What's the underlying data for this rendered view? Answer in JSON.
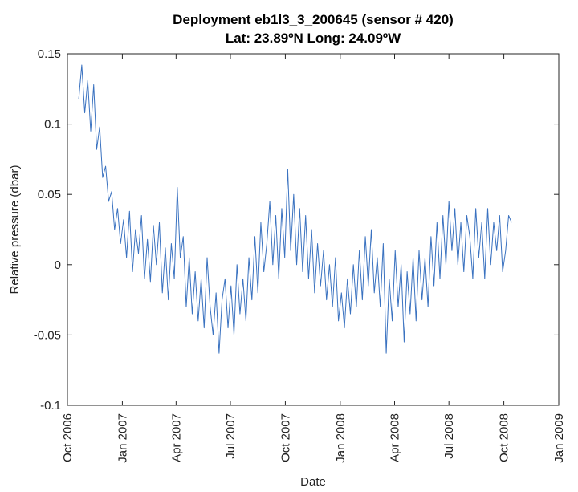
{
  "chart_data": {
    "type": "line",
    "title": "Deployment eb1l3_3_200645 (sensor # 420)",
    "subtitle": "Lat: 23.89ºN Long: 24.09ºW",
    "xlabel": "Date",
    "ylabel": "Relative pressure (dbar)",
    "xlim": [
      "2006-10-01",
      "2009-01-01"
    ],
    "xticks": [
      {
        "value": "2006-10-01",
        "label": "Oct 2006"
      },
      {
        "value": "2007-01-01",
        "label": "Jan 2007"
      },
      {
        "value": "2007-04-01",
        "label": "Apr 2007"
      },
      {
        "value": "2007-07-01",
        "label": "Jul 2007"
      },
      {
        "value": "2007-10-01",
        "label": "Oct 2007"
      },
      {
        "value": "2008-01-01",
        "label": "Jan 2008"
      },
      {
        "value": "2008-04-01",
        "label": "Apr 2008"
      },
      {
        "value": "2008-07-01",
        "label": "Jul 2008"
      },
      {
        "value": "2008-10-01",
        "label": "Oct 2008"
      },
      {
        "value": "2009-01-01",
        "label": "Jan 2009"
      }
    ],
    "ylim": [
      -0.1,
      0.15
    ],
    "yticks": [
      -0.1,
      -0.05,
      0,
      0.05,
      0.1,
      0.15
    ],
    "grid": false,
    "x": [
      "2006-10-20",
      "2006-10-25",
      "2006-10-30",
      "2006-11-04",
      "2006-11-09",
      "2006-11-14",
      "2006-11-19",
      "2006-11-24",
      "2006-11-29",
      "2006-12-04",
      "2006-12-09",
      "2006-12-14",
      "2006-12-19",
      "2006-12-24",
      "2006-12-29",
      "2007-01-03",
      "2007-01-08",
      "2007-01-13",
      "2007-01-18",
      "2007-01-23",
      "2007-01-28",
      "2007-02-02",
      "2007-02-07",
      "2007-02-12",
      "2007-02-17",
      "2007-02-22",
      "2007-02-27",
      "2007-03-04",
      "2007-03-09",
      "2007-03-14",
      "2007-03-19",
      "2007-03-24",
      "2007-03-29",
      "2007-04-03",
      "2007-04-08",
      "2007-04-13",
      "2007-04-18",
      "2007-04-23",
      "2007-04-28",
      "2007-05-03",
      "2007-05-08",
      "2007-05-13",
      "2007-05-18",
      "2007-05-23",
      "2007-05-28",
      "2007-06-02",
      "2007-06-07",
      "2007-06-12",
      "2007-06-17",
      "2007-06-22",
      "2007-06-27",
      "2007-07-02",
      "2007-07-07",
      "2007-07-12",
      "2007-07-17",
      "2007-07-22",
      "2007-07-27",
      "2007-08-01",
      "2007-08-06",
      "2007-08-11",
      "2007-08-16",
      "2007-08-21",
      "2007-08-26",
      "2007-08-31",
      "2007-09-05",
      "2007-09-10",
      "2007-09-15",
      "2007-09-20",
      "2007-09-25",
      "2007-09-30",
      "2007-10-05",
      "2007-10-10",
      "2007-10-15",
      "2007-10-20",
      "2007-10-25",
      "2007-10-30",
      "2007-11-04",
      "2007-11-09",
      "2007-11-14",
      "2007-11-19",
      "2007-11-24",
      "2007-11-29",
      "2007-12-04",
      "2007-12-09",
      "2007-12-14",
      "2007-12-19",
      "2007-12-24",
      "2007-12-29",
      "2008-01-03",
      "2008-01-08",
      "2008-01-13",
      "2008-01-18",
      "2008-01-23",
      "2008-01-28",
      "2008-02-02",
      "2008-02-07",
      "2008-02-12",
      "2008-02-17",
      "2008-02-22",
      "2008-02-27",
      "2008-03-03",
      "2008-03-08",
      "2008-03-13",
      "2008-03-18",
      "2008-03-23",
      "2008-03-28",
      "2008-04-02",
      "2008-04-07",
      "2008-04-12",
      "2008-04-17",
      "2008-04-22",
      "2008-04-27",
      "2008-05-02",
      "2008-05-07",
      "2008-05-12",
      "2008-05-17",
      "2008-05-22",
      "2008-05-27",
      "2008-06-01",
      "2008-06-06",
      "2008-06-11",
      "2008-06-16",
      "2008-06-21",
      "2008-06-26",
      "2008-07-01",
      "2008-07-06",
      "2008-07-11",
      "2008-07-16",
      "2008-07-21",
      "2008-07-26",
      "2008-07-31",
      "2008-08-05",
      "2008-08-10",
      "2008-08-15",
      "2008-08-20",
      "2008-08-25",
      "2008-08-30",
      "2008-09-04",
      "2008-09-09",
      "2008-09-14",
      "2008-09-19",
      "2008-09-24",
      "2008-09-29",
      "2008-10-04",
      "2008-10-09",
      "2008-10-14"
    ],
    "series": [
      {
        "name": "Relative pressure",
        "color": "#3a72c0",
        "values": [
          0.118,
          0.142,
          0.108,
          0.131,
          0.095,
          0.128,
          0.082,
          0.098,
          0.062,
          0.07,
          0.045,
          0.052,
          0.025,
          0.04,
          0.015,
          0.032,
          0.005,
          0.038,
          -0.005,
          0.025,
          0.008,
          0.035,
          -0.01,
          0.018,
          -0.012,
          0.028,
          0.0,
          0.03,
          -0.02,
          0.012,
          -0.025,
          0.015,
          -0.01,
          0.055,
          0.005,
          0.02,
          -0.03,
          0.005,
          -0.035,
          -0.005,
          -0.04,
          -0.01,
          -0.045,
          0.005,
          -0.03,
          -0.05,
          -0.02,
          -0.063,
          -0.025,
          -0.01,
          -0.045,
          -0.015,
          -0.05,
          0.0,
          -0.035,
          -0.01,
          -0.04,
          0.005,
          -0.025,
          0.02,
          -0.02,
          0.03,
          -0.005,
          0.015,
          0.045,
          0.0,
          0.035,
          -0.01,
          0.04,
          0.005,
          0.068,
          0.01,
          0.05,
          0.0,
          0.04,
          -0.005,
          0.035,
          -0.01,
          0.025,
          -0.02,
          0.015,
          -0.015,
          0.01,
          -0.025,
          0.0,
          -0.03,
          0.005,
          -0.04,
          -0.02,
          -0.045,
          -0.01,
          -0.035,
          0.0,
          -0.03,
          0.01,
          -0.025,
          0.02,
          -0.015,
          0.025,
          -0.02,
          0.005,
          -0.03,
          0.015,
          -0.063,
          -0.01,
          -0.04,
          0.01,
          -0.03,
          0.0,
          -0.055,
          -0.005,
          -0.035,
          0.005,
          -0.04,
          0.01,
          -0.025,
          0.005,
          -0.03,
          0.02,
          -0.015,
          0.03,
          -0.01,
          0.035,
          0.0,
          0.045,
          0.01,
          0.04,
          0.0,
          0.03,
          -0.005,
          0.035,
          0.02,
          -0.01,
          0.04,
          0.005,
          0.03,
          -0.01,
          0.04,
          0.0,
          0.03,
          0.01,
          0.035,
          -0.005,
          0.01,
          0.035,
          0.03
        ]
      }
    ]
  }
}
